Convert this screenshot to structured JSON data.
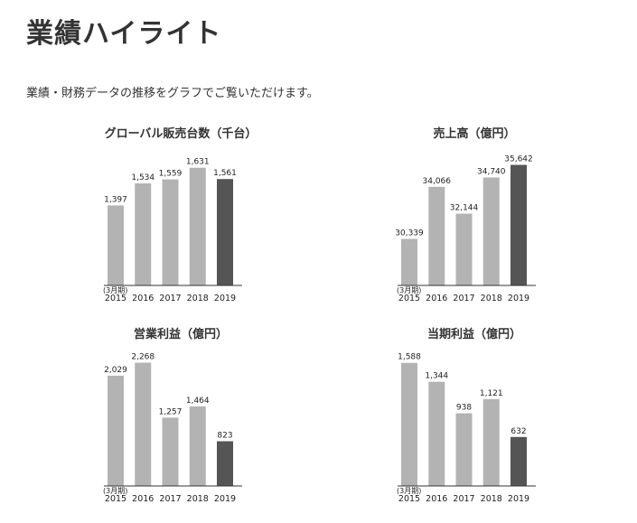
{
  "page": {
    "title": "業績ハイライト",
    "intro": "業績・財務データの推移をグラフでご覧いただけます。"
  },
  "colors": {
    "past_bar": "#b3b3b3",
    "latest_bar": "#555555",
    "axis": "#333333"
  },
  "chart_data": [
    {
      "type": "bar",
      "title": "グローバル販売台数（千台）",
      "period_note": "(3月期)",
      "categories": [
        "2015",
        "2016",
        "2017",
        "2018",
        "2019"
      ],
      "values": [
        1397,
        1534,
        1559,
        1631,
        1561
      ],
      "value_labels": [
        "1,397",
        "1,534",
        "1,559",
        "1,631",
        "1,561"
      ],
      "ylim": [
        900,
        1680
      ]
    },
    {
      "type": "bar",
      "title": "売上高（億円）",
      "period_note": "(3月期)",
      "categories": [
        "2015",
        "2016",
        "2017",
        "2018",
        "2019"
      ],
      "values": [
        30339,
        34066,
        32144,
        34740,
        35642
      ],
      "value_labels": [
        "30,339",
        "34,066",
        "32,144",
        "34,740",
        "35,642"
      ],
      "ylim": [
        27000,
        36000
      ]
    },
    {
      "type": "bar",
      "title": "営業利益（億円）",
      "period_note": "(3月期)",
      "categories": [
        "2015",
        "2016",
        "2017",
        "2018",
        "2019"
      ],
      "values": [
        2029,
        2268,
        1257,
        1464,
        823
      ],
      "value_labels": [
        "2,029",
        "2,268",
        "1,257",
        "1,464",
        "823"
      ],
      "ylim": [
        0,
        2310
      ]
    },
    {
      "type": "bar",
      "title": "当期利益（億円）",
      "period_note": "(3月期)",
      "categories": [
        "2015",
        "2016",
        "2017",
        "2018",
        "2019"
      ],
      "values": [
        1588,
        1344,
        938,
        1121,
        632
      ],
      "value_labels": [
        "1,588",
        "1,344",
        "938",
        "1,121",
        "632"
      ],
      "ylim": [
        0,
        1620
      ]
    }
  ]
}
